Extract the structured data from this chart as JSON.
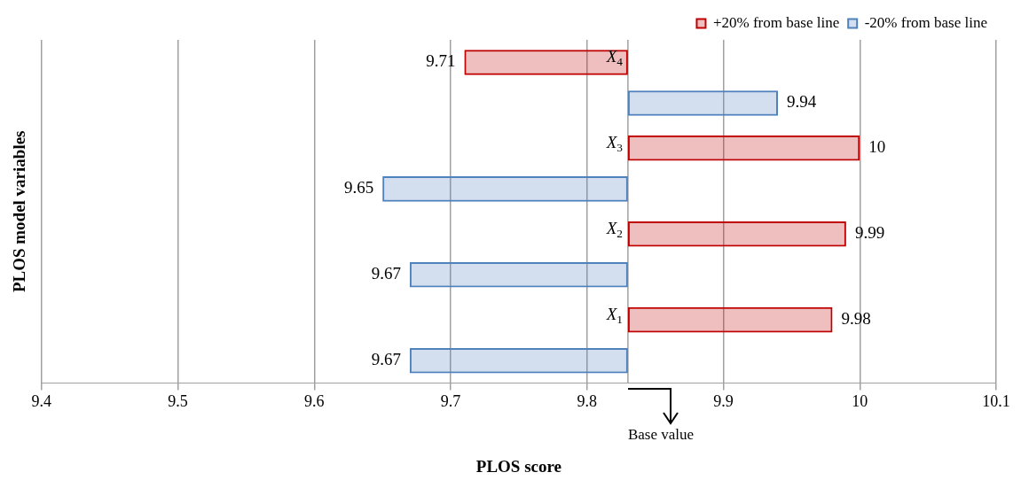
{
  "chart_data": {
    "type": "bar",
    "orientation": "horizontal",
    "xlabel": "PLOS score",
    "ylabel": "PLOS model variables",
    "categories": [
      "X$_{4}$",
      "X$_{3}$",
      "X$_{2}$",
      "X$_{1}$"
    ],
    "series": [
      {
        "name": "+20% from base line",
        "color": "#c00000",
        "base": [
          9.83,
          9.83,
          9.83,
          9.83
        ],
        "values": [
          -0.12,
          0.17,
          0.16,
          0.15
        ],
        "value_labels": [
          "9.71",
          "10",
          "9.99",
          "9.98"
        ]
      },
      {
        "name": "-20% from base line",
        "color": "#4f81bd",
        "base": [
          9.83,
          9.83,
          9.83,
          9.83
        ],
        "values": [
          0.11,
          -0.18,
          -0.16,
          -0.16
        ],
        "value_labels": [
          "9.94",
          "9.65",
          "9.67",
          "9.67"
        ]
      }
    ],
    "xlim": [
      9.4,
      10.1
    ],
    "xticks": [
      9.4,
      9.5,
      9.6,
      9.7,
      9.8,
      9.9,
      {
        "value": 10,
        "label": "10"
      },
      10.1
    ],
    "annotations": [
      "Base value"
    ],
    "grid": "x",
    "legend": "top right"
  }
}
